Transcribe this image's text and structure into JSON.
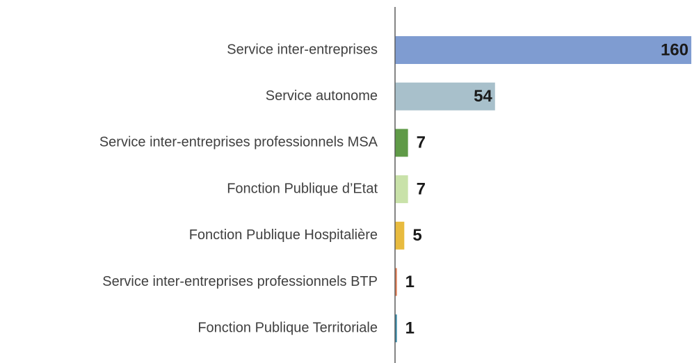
{
  "chart_data": {
    "type": "hbar",
    "categories": [
      "Service inter-entreprises",
      "Service autonome",
      "Service inter-entreprises professionnels MSA",
      "Fonction Publique d’Etat",
      "Fonction Publique Hospitalière",
      "Service inter-entreprises professionnels BTP",
      "Fonction Publique Territoriale"
    ],
    "values": [
      160,
      54,
      7,
      7,
      5,
      1,
      1
    ],
    "colors": [
      "#7f9cd1",
      "#a8c0cb",
      "#5f9a47",
      "#c9e2a9",
      "#e8bb3f",
      "#e07d55",
      "#3a8aa7"
    ]
  }
}
